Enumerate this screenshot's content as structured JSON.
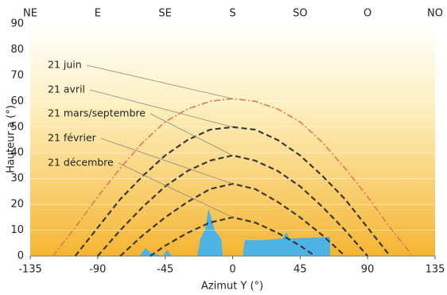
{
  "chart_data": {
    "type": "line",
    "x_label": "Azimut Y (°)",
    "y_label": "Hauteur a (°)",
    "xlim": [
      -135,
      135
    ],
    "ylim": [
      0,
      90
    ],
    "xticks": [
      -135,
      -90,
      -45,
      0,
      45,
      90,
      135
    ],
    "x2ticks": [
      {
        "value": -135,
        "label": "NE"
      },
      {
        "value": -90,
        "label": "E"
      },
      {
        "value": -45,
        "label": "SE"
      },
      {
        "value": 0,
        "label": "S"
      },
      {
        "value": 45,
        "label": "SO"
      },
      {
        "value": 90,
        "label": "O"
      },
      {
        "value": 135,
        "label": "NO"
      }
    ],
    "yticks": [
      0,
      10,
      20,
      30,
      40,
      50,
      60,
      70,
      80,
      90
    ],
    "grid": true,
    "series": [
      {
        "name": "21 juin",
        "color": "#e2775a",
        "x": [
          -120,
          -105,
          -90,
          -75,
          -60,
          -45,
          -30,
          -15,
          0,
          15,
          30,
          45,
          60,
          75,
          90,
          105,
          120
        ],
        "values": [
          0,
          11,
          23,
          34,
          44,
          52,
          57,
          60,
          61,
          60,
          57,
          52,
          44,
          34,
          23,
          11,
          0
        ]
      },
      {
        "name": "21 avril",
        "color": "#3a3a3a",
        "x": [
          -105,
          -90,
          -75,
          -60,
          -45,
          -30,
          -15,
          0,
          15,
          30,
          45,
          60,
          75,
          90,
          105
        ],
        "values": [
          0,
          11,
          22,
          31,
          39,
          45,
          49,
          50,
          49,
          45,
          39,
          31,
          22,
          11,
          0
        ]
      },
      {
        "name": "21 mars/septembre",
        "color": "#3a3a3a",
        "x": [
          -90,
          -75,
          -60,
          -45,
          -30,
          -15,
          0,
          15,
          30,
          45,
          60,
          75,
          90
        ],
        "values": [
          0,
          10,
          19,
          27,
          33,
          37,
          39,
          37,
          33,
          27,
          19,
          10,
          0
        ]
      },
      {
        "name": "21 février",
        "color": "#3a3a3a",
        "x": [
          -75,
          -60,
          -45,
          -30,
          -15,
          0,
          15,
          30,
          45,
          60,
          75
        ],
        "values": [
          0,
          8,
          15,
          21,
          26,
          28,
          26,
          21,
          15,
          8,
          0
        ]
      },
      {
        "name": "21 décembre",
        "color": "#3a3a3a",
        "x": [
          -55,
          -45,
          -30,
          -15,
          0,
          15,
          30,
          45,
          55
        ],
        "values": [
          0,
          4,
          9,
          13,
          15,
          13,
          9,
          4,
          0
        ]
      }
    ]
  }
}
